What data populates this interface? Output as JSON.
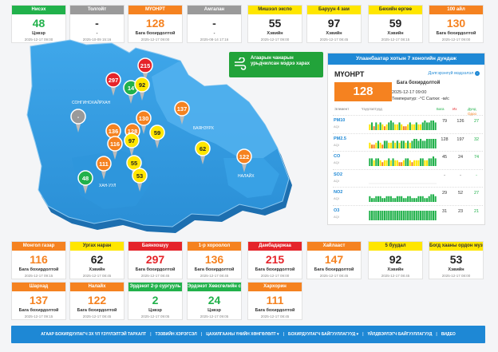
{
  "top_stations": [
    {
      "name": "Нисэх",
      "value": "48",
      "status": "Цэвэр",
      "time": "2025-12-17 09:00",
      "color": "green"
    },
    {
      "name": "Толгойт",
      "value": "-",
      "status": "-",
      "time": "2025-10-09 15:16",
      "color": "gray"
    },
    {
      "name": "МҮОНРТ",
      "value": "128",
      "status": "Бага бохирдолтой",
      "time": "2025-12-17 09:00",
      "color": "orange"
    },
    {
      "name": "Амгалан",
      "value": "-",
      "status": "-",
      "time": "2025-08-14 17:16",
      "color": "gray"
    },
    {
      "name": "Мишээл экспо",
      "value": "55",
      "status": "Хэвийн",
      "time": "2025-12-17 09:00",
      "color": "yellow"
    },
    {
      "name": "Баруун 4 зам",
      "value": "97",
      "status": "Хэвийн",
      "time": "2025-12-17 08:45",
      "color": "yellow"
    },
    {
      "name": "Бөхийн өргөө",
      "value": "59",
      "status": "Хэвийн",
      "time": "2025-12-17 08:15",
      "color": "yellow"
    },
    {
      "name": "100 айл",
      "value": "130",
      "status": "Бага бохирдолтой",
      "time": "2025-12-17 09:00",
      "color": "orange"
    }
  ],
  "bottom_row1": [
    {
      "name": "Монгол газар",
      "value": "116",
      "status": "Бага бохирдолтой",
      "time": "2025-12-17 09:15",
      "color": "orange"
    },
    {
      "name": "Ургах наран",
      "value": "62",
      "status": "Хэвийн",
      "time": "2025-12-17 08:45",
      "color": "yellow"
    },
    {
      "name": "Баянхошуу",
      "value": "297",
      "status": "Бага бохирдолтой",
      "time": "2025-12-17 08:45",
      "color": "red"
    },
    {
      "name": "1-р хороолол",
      "value": "136",
      "status": "Бага бохирдолтой",
      "time": "2025-12-17 08:45",
      "color": "orange"
    },
    {
      "name": "Дамбадаржаа",
      "value": "215",
      "status": "Бага бохирдолтой",
      "time": "2025-12-17 09:00",
      "color": "red"
    },
    {
      "name": "Хайлааст",
      "value": "147",
      "status": "Бага бохирдолтой",
      "time": "2025-12-17 08:45",
      "color": "orange"
    },
    {
      "name": "5 буудал",
      "value": "92",
      "status": "Хэвийн",
      "time": "2025-12-17 08:45",
      "color": "yellow"
    },
    {
      "name": "Богд хааны ордон музей",
      "value": "53",
      "status": "Хэвийн",
      "time": "2025-12-17 08:00",
      "color": "yellow"
    }
  ],
  "bottom_row2": [
    {
      "name": "Шархад",
      "value": "137",
      "status": "Бага бохирдолтой",
      "time": "2025-12-17 09:15",
      "color": "orange"
    },
    {
      "name": "Налайх",
      "value": "122",
      "status": "Бага бохирдолтой",
      "time": "2025-12-17 08:45",
      "color": "orange"
    },
    {
      "name": "Эрдэнэт 2-р сургууль",
      "value": "2",
      "status": "Цэвэр",
      "time": "2025-12-17 09:05",
      "color": "green"
    },
    {
      "name": "Эрдэнэт Хөвсгөлийн сан",
      "value": "24",
      "status": "Цэвэр",
      "time": "2025-12-17 09:05",
      "color": "green"
    },
    {
      "name": "Хархорин",
      "value": "111",
      "status": "Бага бохирдолтой",
      "time": "2025-12-17 08:45",
      "color": "orange"
    }
  ],
  "map": {
    "labels": [
      "СОНГИНОХАЙРХАН",
      "БАЯНЗҮРХ",
      "ХАН-УУЛ",
      "НАЛАЙХ"
    ],
    "markers": [
      "215",
      "297",
      "14",
      "92",
      "137",
      "-",
      "130",
      "136",
      "128",
      "59",
      "116",
      "97",
      "62",
      "122",
      "111",
      "55",
      "53",
      "48"
    ]
  },
  "pollution_button": {
    "label": "Агаарын чанарын урьдчилсан мэдээ харах"
  },
  "forecast": {
    "title": "Улаанбаатар хотын 7 хоногийн дундаж",
    "station": "МҮОНРТ",
    "link": "Дэлгэрэнгүй мэдээлэл",
    "aqi": "128",
    "status": "Бага бохирдолтой",
    "time": "2025-12-17 09:00",
    "temp": "Температур:   -°C  Салхи:  -м/с",
    "headers": {
      "element": "Элемент",
      "indicator": "Үзүүлэлтүүд",
      "min": "Бага",
      "max": "Их",
      "avg": "Дунд",
      "now": "Одоо"
    },
    "rows": [
      {
        "name": "PM10",
        "unit": "AQI",
        "v1": "79",
        "v2": "126",
        "v3": "27",
        "bars": [
          3,
          4,
          2,
          4,
          3,
          4,
          3,
          2,
          3,
          4,
          5,
          4,
          3,
          3,
          4,
          3,
          2,
          2,
          3,
          4,
          3,
          3,
          4,
          3,
          3,
          4,
          5,
          4,
          4,
          5,
          5,
          4
        ]
      },
      {
        "name": "PM2.5",
        "unit": "AQI",
        "v1": "128",
        "v2": "197",
        "v3": "32",
        "bars": [
          3,
          2,
          2,
          3,
          4,
          3,
          2,
          4,
          4,
          3,
          3,
          4,
          3,
          4,
          3,
          4,
          4,
          3,
          4,
          3,
          4,
          5,
          5,
          4,
          5,
          4,
          4,
          5,
          5,
          5,
          5,
          5
        ]
      },
      {
        "name": "CO",
        "unit": "AQI",
        "v1": "45",
        "v2": "24",
        "v3": "74",
        "bars": [
          4,
          4,
          3,
          4,
          4,
          3,
          2,
          3,
          3,
          4,
          3,
          4,
          3,
          3,
          2,
          2,
          3,
          4,
          4,
          3,
          2,
          3,
          3,
          3,
          4,
          4,
          3,
          3,
          4,
          4,
          5,
          4
        ]
      },
      {
        "name": "SO2",
        "unit": "AQI",
        "v1": "-",
        "v2": "-",
        "v3": "-",
        "bars": []
      },
      {
        "name": "NO2",
        "unit": "AQI",
        "v1": "29",
        "v2": "52",
        "v3": "27",
        "bars": [
          3,
          2,
          2,
          3,
          3,
          3,
          2,
          2,
          3,
          3,
          3,
          2,
          2,
          3,
          3,
          3,
          2,
          2,
          3,
          3,
          2,
          2,
          2,
          3,
          3,
          3,
          2,
          2,
          3,
          4,
          4,
          3
        ]
      },
      {
        "name": "O3",
        "unit": "AQI",
        "v1": "31",
        "v2": "23",
        "v3": "21",
        "bars": [
          5,
          5,
          5,
          5,
          5,
          5,
          5,
          5,
          5,
          5,
          5,
          5,
          5,
          5,
          5,
          5,
          5,
          5,
          5,
          5,
          5,
          5,
          5,
          5,
          5,
          5,
          5,
          5,
          5,
          5,
          5,
          5
        ]
      }
    ]
  },
  "footer": {
    "items": [
      "АГААР БОХИРДУУЛАГЧ ЗХ ҮЛ ҮЗҮҮЛЭЛТЭЙ ТАРХАЛТ",
      "ТЭЗВИЙН ХЭРЭГСЭЛ",
      "ЦАХИЛГААНЫ ҮНИЙН ХӨНГӨЛӨЛТ ▾",
      "БОХИРДУУЛАГЧ БАЙГУУЛЛАГУУД ▾",
      "ҮЙЛДВЭРЛЭГЧ БАЙГУУЛЛАГУУД",
      "ВИДЕО"
    ]
  }
}
